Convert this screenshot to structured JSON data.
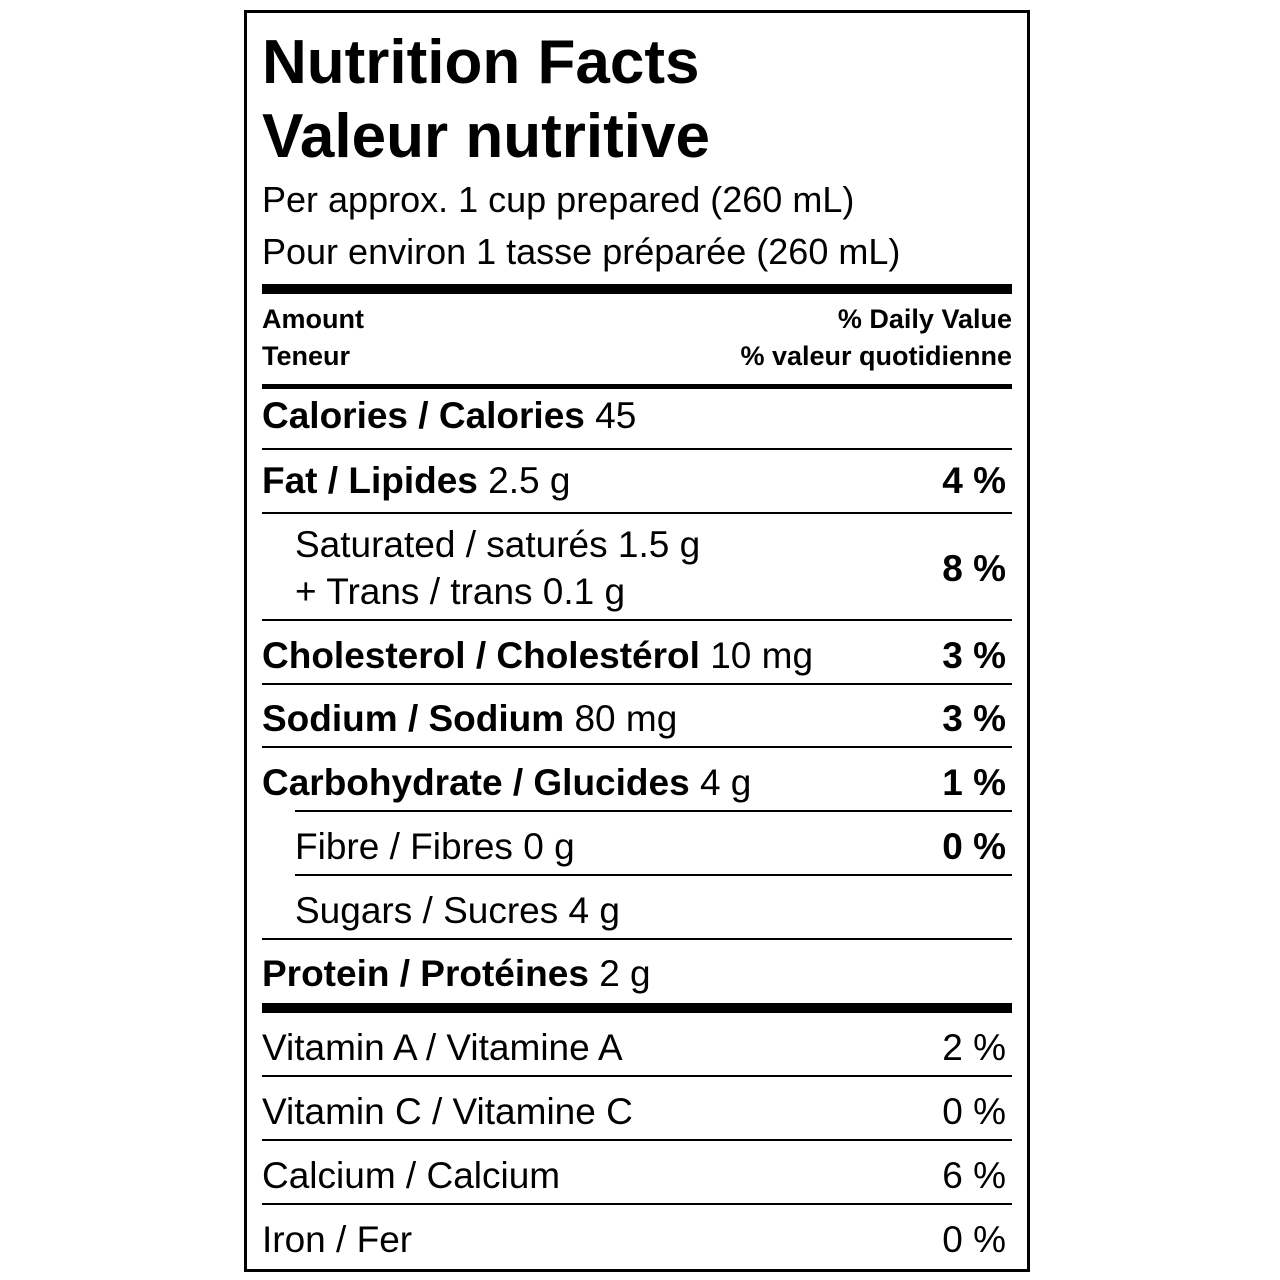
{
  "title_en": "Nutrition Facts",
  "title_fr": "Valeur nutritive",
  "serving_en": "Per approx. 1 cup prepared (260 mL)",
  "serving_fr": "Pour environ 1 tasse préparée (260 mL)",
  "header": {
    "amount": "Amount",
    "teneur": "Teneur",
    "dv_en": "% Daily Value",
    "dv_fr": "% valeur quotidienne"
  },
  "rows": {
    "calories": {
      "label": "Calories / Calories",
      "amount": "45"
    },
    "fat": {
      "label": "Fat / Lipides",
      "amount": "2.5 g",
      "dv": "4 %"
    },
    "saturated": {
      "label": "Saturated / saturés 1.5 g",
      "trans": "+ Trans / trans 0.1 g",
      "dv": "8 %"
    },
    "cholesterol": {
      "label": "Cholesterol / Cholestérol",
      "amount": "10 mg",
      "dv": "3 %"
    },
    "sodium": {
      "label": "Sodium / Sodium",
      "amount": "80 mg",
      "dv": "3 %"
    },
    "carbohydrate": {
      "label": "Carbohydrate / Glucides",
      "amount": "4 g",
      "dv": "1 %"
    },
    "fibre": {
      "label": "Fibre / Fibres 0 g",
      "dv": "0 %"
    },
    "sugars": {
      "label": "Sugars / Sucres 4 g"
    },
    "protein": {
      "label": "Protein / Protéines",
      "amount": "2 g"
    }
  },
  "vitamins": {
    "vitamin_a": {
      "label": "Vitamin A / Vitamine A",
      "dv": "2 %"
    },
    "vitamin_c": {
      "label": "Vitamin C / Vitamine C",
      "dv": "0 %"
    },
    "calcium": {
      "label": "Calcium / Calcium",
      "dv": "6 %"
    },
    "iron": {
      "label": "Iron / Fer",
      "dv": "0 %"
    }
  }
}
